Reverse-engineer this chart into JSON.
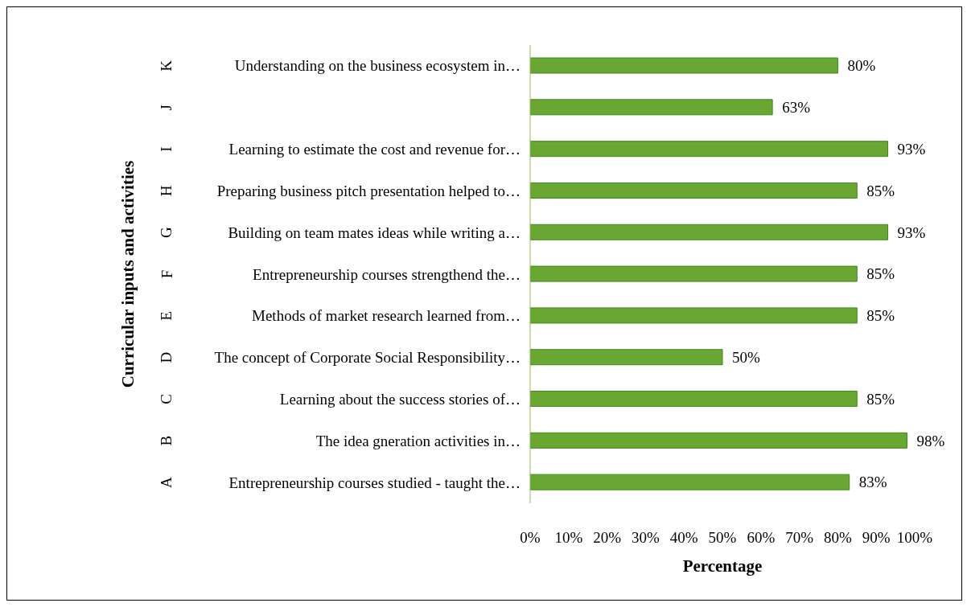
{
  "chart_data": {
    "type": "bar",
    "orientation": "horizontal",
    "xlabel": "Percentage",
    "ylabel": "Curricular inputs and activities",
    "categories": [
      "Understanding on  the business ecosystem in…",
      null,
      "Learning to estimate the cost and revenue for…",
      "Preparing business pitch presentation helped to…",
      "Building on team mates ideas while writing a…",
      "Entrepreneurship courses strengthend the…",
      "Methods of market research learned from…",
      "The concept of Corporate Social Responsibility…",
      "Learning about the success stories of…",
      "The idea gneration activities in…",
      "Entrepreneurship courses studied - taught the…"
    ],
    "y2_categories": [
      "K",
      "J",
      "I",
      "H",
      "G",
      "F",
      "E",
      "D",
      "C",
      "B",
      "A"
    ],
    "values": [
      80,
      63,
      93,
      85,
      93,
      85,
      85,
      50,
      85,
      98,
      83
    ],
    "value_labels": [
      "80%",
      "63%",
      "93%",
      "85%",
      "93%",
      "85%",
      "85%",
      "50%",
      "85%",
      "98%",
      "83%"
    ],
    "color": "#6aa632",
    "xlim": [
      0,
      100
    ],
    "xticks": [
      {
        "value": 0,
        "label": "0%"
      },
      {
        "value": 10,
        "label": "10%"
      },
      {
        "value": 20,
        "label": "20%"
      },
      {
        "value": 30,
        "label": "30%"
      },
      {
        "value": 40,
        "label": "40%"
      },
      {
        "value": 50,
        "label": "50%"
      },
      {
        "value": 60,
        "label": "60%"
      },
      {
        "value": 70,
        "label": "70%"
      },
      {
        "value": 80,
        "label": "80%"
      },
      {
        "value": 90,
        "label": "90%"
      },
      {
        "value": 100,
        "label": "100%"
      }
    ],
    "grid": false,
    "legend": false
  }
}
